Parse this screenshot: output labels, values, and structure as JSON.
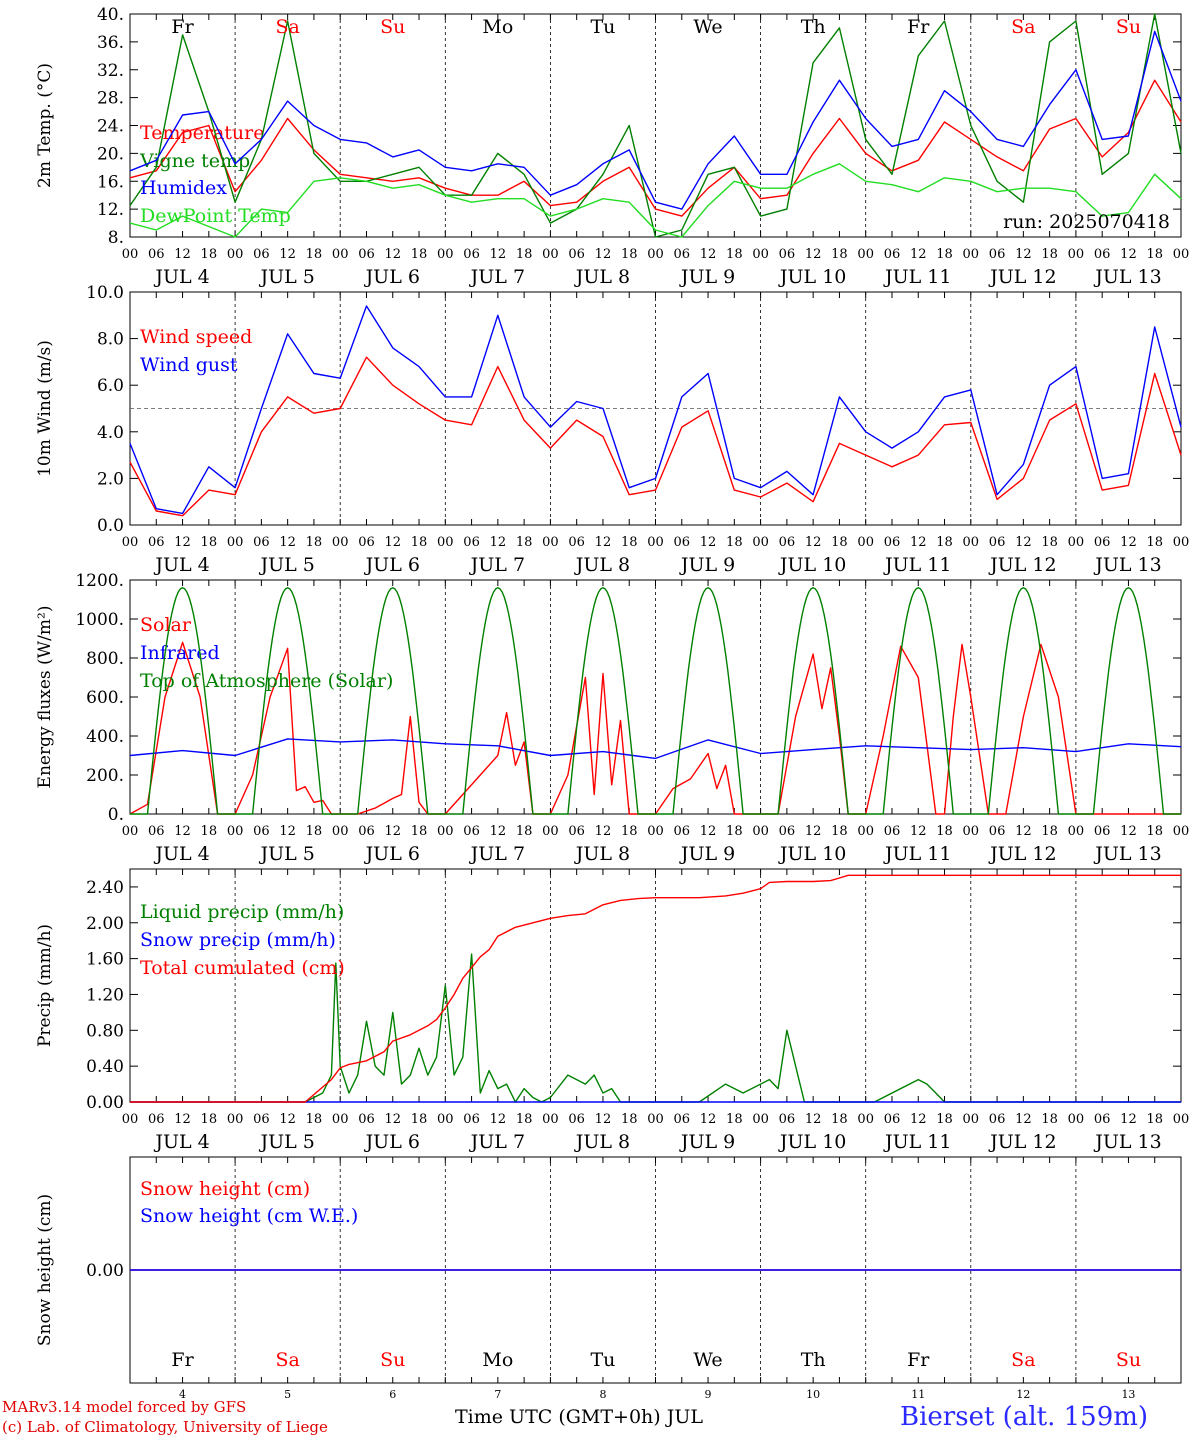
{
  "colors": {
    "red": "#ff0000",
    "green": "#008000",
    "blue": "#0000ff",
    "lightgreen": "#22dd22",
    "black": "#000000",
    "weekend": "#ff0000"
  },
  "days": [
    {
      "abbr": "Fr",
      "num": "4",
      "weekend": false
    },
    {
      "abbr": "Sa",
      "num": "5",
      "weekend": true
    },
    {
      "abbr": "Su",
      "num": "6",
      "weekend": true
    },
    {
      "abbr": "Mo",
      "num": "7",
      "weekend": false
    },
    {
      "abbr": "Tu",
      "num": "8",
      "weekend": false
    },
    {
      "abbr": "We",
      "num": "9",
      "weekend": false
    },
    {
      "abbr": "Th",
      "num": "10",
      "weekend": false
    },
    {
      "abbr": "Fr",
      "num": "11",
      "weekend": false
    },
    {
      "abbr": "Sa",
      "num": "12",
      "weekend": true
    },
    {
      "abbr": "Su",
      "num": "13",
      "weekend": true
    }
  ],
  "hour_ticks": [
    "00",
    "06",
    "12",
    "18"
  ],
  "month_label": "JUL",
  "run_label": "run: 2025070418",
  "footer": {
    "credit_line1": "MARv3.14 model forced by GFS",
    "credit_line2": "(c) Lab. of Climatology, University of Liege",
    "x_title": "Time UTC (GMT+0h) JUL",
    "station": "Bierset (alt. 159m)"
  },
  "chart_data": [
    {
      "type": "line",
      "ylabel": "2m Temp. (°C)",
      "ylim": [
        8,
        40
      ],
      "yticks": [
        "8.",
        "12.",
        "16.",
        "20.",
        "24.",
        "28.",
        "32.",
        "36.",
        "40."
      ],
      "x_unit": "hours since 00 UTC JUL 4",
      "series": [
        {
          "name": "Temperature",
          "color": "red",
          "x": [
            0,
            6,
            12,
            18,
            24,
            30,
            36,
            42,
            48,
            54,
            60,
            66,
            72,
            78,
            84,
            90,
            96,
            102,
            108,
            114,
            120,
            126,
            132,
            138,
            144,
            150,
            156,
            162,
            168,
            174,
            180,
            186,
            192,
            198,
            204,
            210,
            216,
            222,
            228,
            234,
            240
          ],
          "y": [
            16.5,
            17.5,
            23,
            24,
            14.5,
            19,
            25,
            20.5,
            17,
            16.5,
            16,
            16.5,
            15,
            14,
            14,
            16,
            12.5,
            13,
            16,
            18,
            12,
            11,
            15,
            18,
            13.5,
            14,
            20,
            25,
            20,
            17.5,
            19,
            24.5,
            22,
            19.5,
            17.5,
            23.5,
            25,
            19.5,
            23,
            30.5,
            24.5
          ]
        },
        {
          "name": "Vigne temp",
          "color": "green",
          "x": [
            0,
            6,
            12,
            18,
            24,
            30,
            36,
            42,
            48,
            54,
            60,
            66,
            72,
            78,
            84,
            90,
            96,
            102,
            108,
            114,
            120,
            126,
            132,
            138,
            144,
            150,
            156,
            162,
            168,
            174,
            180,
            186,
            192,
            198,
            204,
            210,
            216,
            222,
            228,
            234,
            240
          ],
          "y": [
            12.5,
            18,
            37,
            26,
            13,
            22,
            39,
            20,
            16,
            16,
            17,
            18,
            14,
            14,
            20,
            17,
            10,
            12,
            17,
            24,
            8,
            9,
            17,
            18,
            11,
            12,
            33,
            38,
            22,
            17,
            34,
            39,
            24,
            16,
            13,
            36,
            39,
            17,
            20,
            40,
            20
          ]
        },
        {
          "name": "Humidex",
          "color": "blue",
          "x": [
            0,
            6,
            12,
            18,
            24,
            30,
            36,
            42,
            48,
            54,
            60,
            66,
            72,
            78,
            84,
            90,
            96,
            102,
            108,
            114,
            120,
            126,
            132,
            138,
            144,
            150,
            156,
            162,
            168,
            174,
            180,
            186,
            192,
            198,
            204,
            210,
            216,
            222,
            228,
            234,
            240
          ],
          "y": [
            17.5,
            19,
            25.5,
            26,
            18.5,
            22,
            27.5,
            24,
            22,
            21.5,
            19.5,
            20.5,
            18,
            17.5,
            18.5,
            18,
            14,
            15.5,
            18.5,
            20.5,
            13,
            12,
            18.5,
            22.5,
            17,
            17,
            24.5,
            30.5,
            25,
            21,
            22,
            29,
            26,
            22,
            21,
            27,
            32,
            22,
            22.5,
            37.5,
            27.5
          ]
        },
        {
          "name": "DewPoint Temp",
          "color": "lightgreen",
          "x": [
            0,
            6,
            12,
            18,
            24,
            30,
            36,
            42,
            48,
            54,
            60,
            66,
            72,
            78,
            84,
            90,
            96,
            102,
            108,
            114,
            120,
            126,
            132,
            138,
            144,
            150,
            156,
            162,
            168,
            174,
            180,
            186,
            192,
            198,
            204,
            210,
            216,
            222,
            228,
            234,
            240
          ],
          "y": [
            10,
            9,
            11,
            9.5,
            8,
            12,
            11.5,
            16,
            16.5,
            16,
            15,
            15.5,
            14,
            13,
            13.5,
            13.5,
            11,
            12,
            13.5,
            13,
            9,
            8,
            12.5,
            16,
            15,
            15,
            17,
            18.5,
            16,
            15.5,
            14.5,
            16.5,
            16,
            14.5,
            15,
            15,
            14.5,
            11,
            11.5,
            17,
            13.5
          ]
        }
      ]
    },
    {
      "type": "line",
      "ylabel": "10m Wind (m/s)",
      "ylim": [
        0,
        10
      ],
      "yticks": [
        "0.0",
        "2.0",
        "4.0",
        "6.0",
        "8.0",
        "10.0"
      ],
      "reference_line": 5,
      "series": [
        {
          "name": "Wind speed",
          "color": "red",
          "x": [
            0,
            6,
            12,
            18,
            24,
            30,
            36,
            42,
            48,
            54,
            60,
            66,
            72,
            78,
            84,
            90,
            96,
            102,
            108,
            114,
            120,
            126,
            132,
            138,
            144,
            150,
            156,
            162,
            168,
            174,
            180,
            186,
            192,
            198,
            204,
            210,
            216,
            222,
            228,
            234,
            240
          ],
          "y": [
            2.7,
            0.6,
            0.4,
            1.5,
            1.3,
            4.0,
            5.5,
            4.8,
            5.0,
            7.2,
            6.0,
            5.2,
            4.5,
            4.3,
            6.8,
            4.5,
            3.3,
            4.5,
            3.8,
            1.3,
            1.5,
            4.2,
            4.9,
            1.5,
            1.2,
            1.8,
            1.0,
            3.5,
            3.0,
            2.5,
            3.0,
            4.3,
            4.4,
            1.1,
            2.0,
            4.5,
            5.2,
            1.5,
            1.7,
            6.5,
            3.0
          ]
        },
        {
          "name": "Wind gust",
          "color": "blue",
          "x": [
            0,
            6,
            12,
            18,
            24,
            30,
            36,
            42,
            48,
            54,
            60,
            66,
            72,
            78,
            84,
            90,
            96,
            102,
            108,
            114,
            120,
            126,
            132,
            138,
            144,
            150,
            156,
            162,
            168,
            174,
            180,
            186,
            192,
            198,
            204,
            210,
            216,
            222,
            228,
            234,
            240
          ],
          "y": [
            3.5,
            0.7,
            0.5,
            2.5,
            1.6,
            5.0,
            8.2,
            6.5,
            6.3,
            9.4,
            7.6,
            6.8,
            5.5,
            5.5,
            9.0,
            5.5,
            4.2,
            5.3,
            5.0,
            1.6,
            2.0,
            5.5,
            6.5,
            2.0,
            1.6,
            2.3,
            1.3,
            5.5,
            4.0,
            3.3,
            4.0,
            5.5,
            5.8,
            1.3,
            2.6,
            6.0,
            6.8,
            2.0,
            2.2,
            8.5,
            4.2
          ]
        }
      ]
    },
    {
      "type": "line",
      "ylabel": "Energy fluxes (W/m²)",
      "ylim": [
        0,
        1200
      ],
      "yticks": [
        "0.",
        "200.",
        "400.",
        "600.",
        "800.",
        "1000.",
        "1200."
      ],
      "series": [
        {
          "name": "Solar",
          "color": "red",
          "x": [
            0,
            4,
            8,
            12,
            16,
            20,
            24,
            28,
            32,
            36,
            38,
            40,
            42,
            44,
            46,
            48,
            52,
            56,
            60,
            62,
            64,
            66,
            68,
            72,
            76,
            80,
            84,
            86,
            88,
            90,
            92,
            96,
            100,
            104,
            106,
            108,
            110,
            112,
            114,
            116,
            120,
            124,
            128,
            132,
            134,
            136,
            138,
            140,
            144,
            148,
            152,
            156,
            158,
            160,
            162,
            164,
            168,
            172,
            176,
            180,
            184,
            186,
            188,
            190,
            192,
            196,
            200,
            204,
            208,
            212,
            216,
            220,
            224,
            228,
            232,
            236,
            240
          ],
          "y": [
            0,
            50,
            600,
            880,
            600,
            0,
            0,
            200,
            600,
            850,
            120,
            140,
            60,
            70,
            0,
            0,
            0,
            30,
            80,
            100,
            500,
            60,
            0,
            0,
            100,
            200,
            300,
            520,
            250,
            370,
            0,
            0,
            200,
            700,
            100,
            720,
            150,
            480,
            0,
            0,
            0,
            130,
            180,
            310,
            130,
            250,
            0,
            0,
            0,
            0,
            500,
            820,
            540,
            750,
            400,
            0,
            0,
            400,
            860,
            700,
            0,
            0,
            500,
            870,
            600,
            0,
            0,
            500,
            870,
            600,
            0,
            0,
            0,
            0,
            0,
            0,
            0
          ]
        },
        {
          "name": "Infrared",
          "color": "blue",
          "x": [
            0,
            12,
            24,
            36,
            48,
            60,
            72,
            84,
            96,
            108,
            120,
            132,
            144,
            156,
            168,
            180,
            192,
            204,
            216,
            228,
            240
          ],
          "y": [
            300,
            325,
            300,
            385,
            370,
            380,
            360,
            350,
            300,
            320,
            285,
            380,
            310,
            330,
            350,
            340,
            330,
            340,
            320,
            360,
            345
          ]
        },
        {
          "name": "Top of Atmosphere (Solar)",
          "color": "green",
          "note": "daily bell curve peaking near 1160 W/m2 at 12 UTC",
          "peak": 1160
        }
      ]
    },
    {
      "type": "line",
      "ylabel": "Precip (mm/h)",
      "ylim": [
        0,
        2.6
      ],
      "yticks": [
        "0.00",
        "0.40",
        "0.80",
        "1.20",
        "1.60",
        "2.00",
        "2.40"
      ],
      "series": [
        {
          "name": "Liquid precip (mm/h)",
          "color": "green",
          "x": [
            0,
            40,
            44,
            46,
            47,
            48,
            50,
            52,
            54,
            56,
            58,
            60,
            62,
            64,
            66,
            68,
            70,
            72,
            74,
            76,
            78,
            80,
            82,
            84,
            86,
            88,
            90,
            92,
            94,
            96,
            100,
            104,
            106,
            108,
            110,
            112,
            114,
            116,
            120,
            130,
            136,
            140,
            146,
            148,
            150,
            154,
            156,
            158,
            160,
            170,
            180,
            182,
            184,
            186,
            188,
            240
          ],
          "y": [
            0,
            0,
            0.1,
            0.3,
            1.55,
            0.4,
            0.1,
            0.3,
            0.9,
            0.4,
            0.3,
            1.0,
            0.2,
            0.3,
            0.6,
            0.3,
            0.5,
            1.3,
            0.3,
            0.5,
            1.65,
            0.1,
            0.35,
            0.15,
            0.2,
            0,
            0.15,
            0.05,
            0,
            0.05,
            0.3,
            0.2,
            0.3,
            0.1,
            0.15,
            0,
            0,
            0,
            0,
            0,
            0.2,
            0.1,
            0.25,
            0.15,
            0.8,
            0,
            0,
            0,
            0,
            0,
            0.25,
            0.2,
            0.1,
            0,
            0,
            0
          ]
        },
        {
          "name": "Snow precip (mm/h)",
          "color": "blue",
          "x": [
            0,
            240
          ],
          "y": [
            0,
            0
          ]
        },
        {
          "name": "Total cumulated (cm)",
          "color": "red",
          "x": [
            0,
            40,
            46,
            48,
            50,
            54,
            58,
            60,
            64,
            68,
            70,
            72,
            74,
            76,
            78,
            80,
            82,
            84,
            88,
            92,
            96,
            100,
            104,
            108,
            112,
            116,
            120,
            130,
            136,
            140,
            144,
            146,
            150,
            156,
            160,
            162,
            164,
            168,
            180,
            200,
            220,
            240
          ],
          "y": [
            0,
            0,
            0.25,
            0.38,
            0.42,
            0.46,
            0.56,
            0.68,
            0.75,
            0.85,
            0.92,
            1.05,
            1.2,
            1.38,
            1.5,
            1.62,
            1.7,
            1.85,
            1.95,
            2.0,
            2.05,
            2.08,
            2.1,
            2.2,
            2.25,
            2.27,
            2.28,
            2.28,
            2.3,
            2.33,
            2.38,
            2.45,
            2.46,
            2.46,
            2.47,
            2.5,
            2.53,
            2.53,
            2.53,
            2.53,
            2.53,
            2.53
          ]
        }
      ]
    },
    {
      "type": "line",
      "ylabel": "Snow height (cm)",
      "ylim": [
        -1,
        1
      ],
      "yticks": [
        "0.00"
      ],
      "series": [
        {
          "name": "Snow height (cm)",
          "color": "red",
          "x": [
            0,
            240
          ],
          "y": [
            0,
            0
          ]
        },
        {
          "name": "Snow height (cm W.E.)",
          "color": "blue",
          "x": [
            0,
            240
          ],
          "y": [
            0,
            0
          ]
        }
      ]
    }
  ]
}
